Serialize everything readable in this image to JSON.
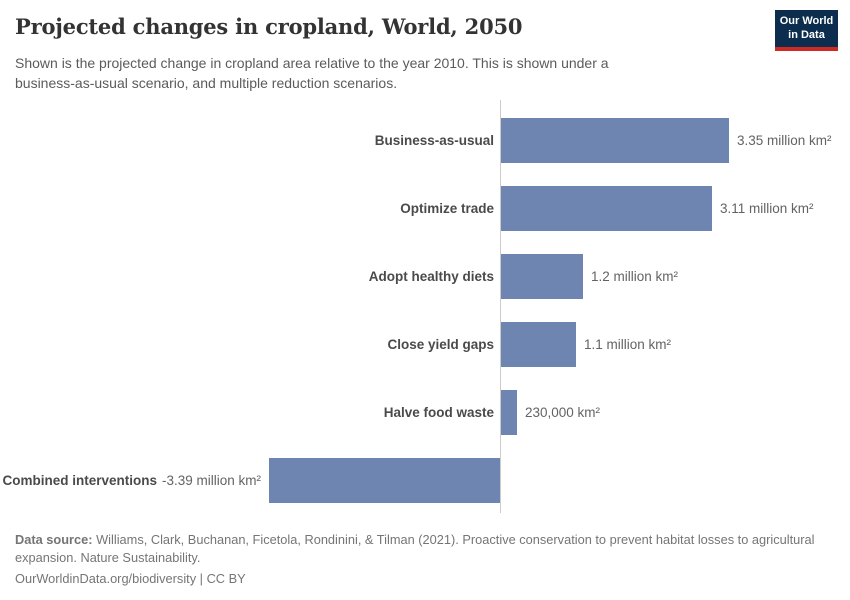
{
  "header": {
    "title": "Projected changes in cropland, World, 2050",
    "subtitle": "Shown is the projected change in cropland area relative to the year 2010. This is shown under a business-as-usual scenario, and multiple reduction scenarios."
  },
  "logo": {
    "line1": "Our World",
    "line2": "in Data",
    "bg_color": "#0c2d4d",
    "accent_color": "#cc2a23"
  },
  "chart_data": {
    "type": "bar",
    "orientation": "horizontal",
    "title": "Projected changes in cropland, World, 2050",
    "categories": [
      "Business-as-usual",
      "Optimize trade",
      "Adopt healthy diets",
      "Close yield gaps",
      "Halve food waste",
      "Combined interventions"
    ],
    "values": [
      3.35,
      3.11,
      1.2,
      1.1,
      0.23,
      -3.39
    ],
    "value_labels": [
      "3.35 million km²",
      "3.11 million km²",
      "1.2 million km²",
      "1.1 million km²",
      "230,000 km²",
      "-3.39 million km²"
    ],
    "unit": "million km²",
    "xlim": [
      -3.4,
      3.4
    ],
    "grid": false,
    "legend": "none",
    "bar_color": "#6d85b0",
    "axis_line_color": "#cccccc"
  },
  "footer": {
    "data_source_label": "Data source:",
    "data_source_text": " Williams, Clark, Buchanan, Ficetola, Rondinini, & Tilman (2021). Proactive conservation to prevent habitat losses to agricultural expansion. Nature Sustainability.",
    "url": "OurWorldinData.org/biodiversity",
    "separator": " | ",
    "license": "CC BY"
  }
}
